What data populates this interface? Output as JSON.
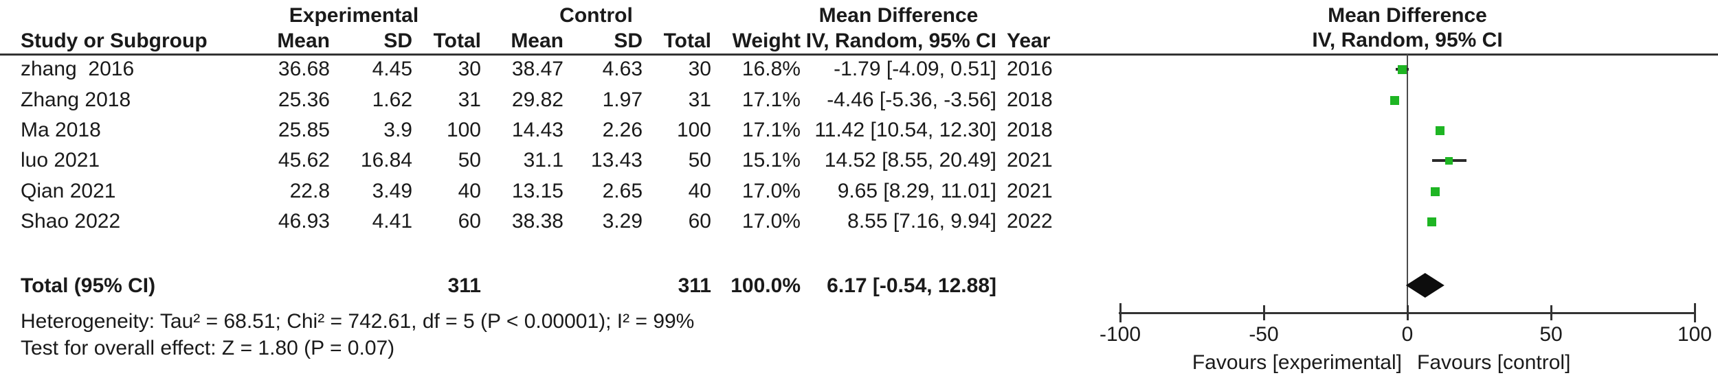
{
  "table": {
    "group_headers": {
      "experimental": "Experimental",
      "control": "Control",
      "mean_difference": "Mean Difference"
    },
    "columns": {
      "study": "Study or Subgroup",
      "mean_e": "Mean",
      "sd_e": "SD",
      "total_e": "Total",
      "mean_c": "Mean",
      "sd_c": "SD",
      "total_c": "Total",
      "weight": "Weight",
      "ci": "IV, Random, 95% CI",
      "year": "Year"
    },
    "rows": [
      {
        "study": "zhang  2016",
        "mean_e": "36.68",
        "sd_e": "4.45",
        "total_e": "30",
        "mean_c": "38.47",
        "sd_c": "4.63",
        "total_c": "30",
        "weight": "16.8%",
        "ci": "-1.79 [-4.09, 0.51]",
        "year": "2016"
      },
      {
        "study": "Zhang 2018",
        "mean_e": "25.36",
        "sd_e": "1.62",
        "total_e": "31",
        "mean_c": "29.82",
        "sd_c": "1.97",
        "total_c": "31",
        "weight": "17.1%",
        "ci": "-4.46 [-5.36, -3.56]",
        "year": "2018"
      },
      {
        "study": "Ma 2018",
        "mean_e": "25.85",
        "sd_e": "3.9",
        "total_e": "100",
        "mean_c": "14.43",
        "sd_c": "2.26",
        "total_c": "100",
        "weight": "17.1%",
        "ci": "11.42 [10.54, 12.30]",
        "year": "2018"
      },
      {
        "study": "luo 2021",
        "mean_e": "45.62",
        "sd_e": "16.84",
        "total_e": "50",
        "mean_c": "31.1",
        "sd_c": "13.43",
        "total_c": "50",
        "weight": "15.1%",
        "ci": "14.52 [8.55, 20.49]",
        "year": "2021"
      },
      {
        "study": "Qian 2021",
        "mean_e": "22.8",
        "sd_e": "3.49",
        "total_e": "40",
        "mean_c": "13.15",
        "sd_c": "2.65",
        "total_c": "40",
        "weight": "17.0%",
        "ci": "9.65 [8.29, 11.01]",
        "year": "2021"
      },
      {
        "study": "Shao 2022",
        "mean_e": "46.93",
        "sd_e": "4.41",
        "total_e": "60",
        "mean_c": "38.38",
        "sd_c": "3.29",
        "total_c": "60",
        "weight": "17.0%",
        "ci": "8.55 [7.16, 9.94]",
        "year": "2022"
      }
    ],
    "total_row": {
      "label": "Total (95% CI)",
      "total_e": "311",
      "total_c": "311",
      "weight": "100.0%",
      "ci": "6.17 [-0.54, 12.88]"
    },
    "heterogeneity": "Heterogeneity: Tau² = 68.51; Chi² = 742.61, df = 5 (P < 0.00001); I² = 99%",
    "overall_effect": "Test for overall effect: Z = 1.80 (P = 0.07)"
  },
  "plot": {
    "header_line1": "Mean Difference",
    "header_line2": "IV, Random, 95% CI",
    "xlabel_left": "Favours [experimental]",
    "xlabel_right": "Favours [control]"
  },
  "chart_data": {
    "type": "scatter",
    "subtype": "forest-plot",
    "effect_measure": "Mean Difference, IV, Random, 95% CI",
    "axis": {
      "min": -100,
      "max": 100,
      "ticks": [
        -100,
        -50,
        0,
        50,
        100
      ]
    },
    "studies": [
      {
        "name": "zhang 2016",
        "md": -1.79,
        "lo": -4.09,
        "hi": 0.51,
        "weight": 16.8,
        "year": 2016
      },
      {
        "name": "Zhang 2018",
        "md": -4.46,
        "lo": -5.36,
        "hi": -3.56,
        "weight": 17.1,
        "year": 2018
      },
      {
        "name": "Ma 2018",
        "md": 11.42,
        "lo": 10.54,
        "hi": 12.3,
        "weight": 17.1,
        "year": 2018
      },
      {
        "name": "luo 2021",
        "md": 14.52,
        "lo": 8.55,
        "hi": 20.49,
        "weight": 15.1,
        "year": 2021
      },
      {
        "name": "Qian 2021",
        "md": 9.65,
        "lo": 8.29,
        "hi": 11.01,
        "weight": 17.0,
        "year": 2021
      },
      {
        "name": "Shao 2022",
        "md": 8.55,
        "lo": 7.16,
        "hi": 9.94,
        "weight": 17.0,
        "year": 2022
      }
    ],
    "total": {
      "md": 6.17,
      "lo": -0.54,
      "hi": 12.88,
      "weight": 100.0
    },
    "heterogeneity": {
      "tau2": 68.51,
      "chi2": 742.61,
      "df": 5,
      "p": "< 0.00001",
      "i2": "99%"
    },
    "overall_effect": {
      "z": 1.8,
      "p": 0.07
    }
  },
  "colors": {
    "marker_green": "#1eb523",
    "diamond_black": "#0d0d0d",
    "line_dark": "#333333"
  }
}
